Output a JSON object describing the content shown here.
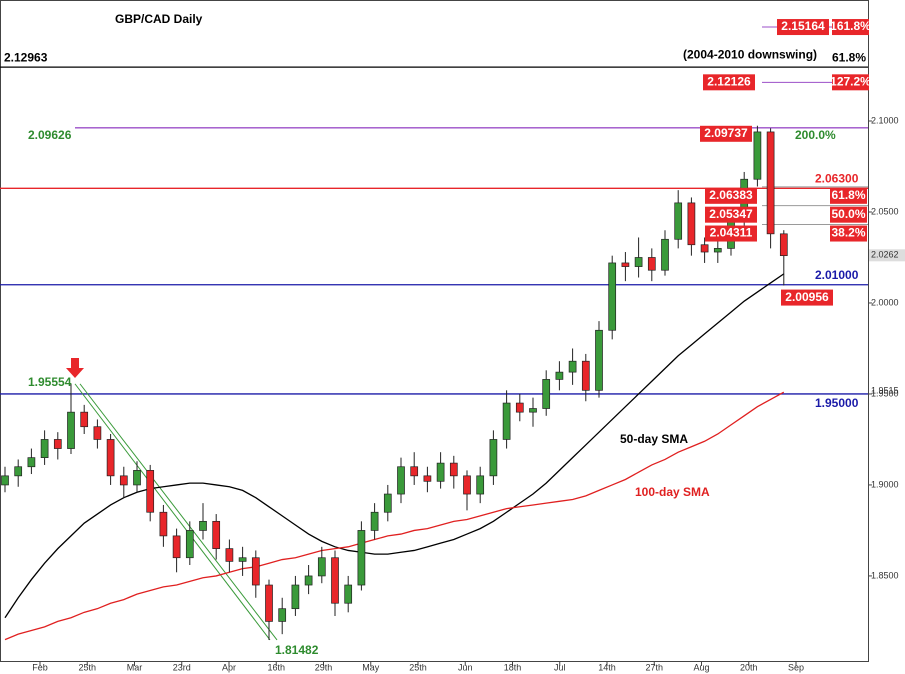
{
  "chart_data": {
    "type": "candlestick",
    "title": "GBP/CAD Daily",
    "ylim": [
      1.8027,
      2.1665
    ],
    "yticks": [
      {
        "value": 2.1,
        "label": "2.1000"
      },
      {
        "value": 2.05,
        "label": "2.0500"
      },
      {
        "value": 2.0,
        "label": "2.0000"
      },
      {
        "value": 1.95,
        "label": "1.9500"
      },
      {
        "value": 1.9,
        "label": "1.9000"
      },
      {
        "value": 1.85,
        "label": "1.8500"
      }
    ],
    "x_labels": [
      "Feb",
      "25th",
      "Mar",
      "23rd",
      "Apr",
      "16th",
      "29th",
      "May",
      "25th",
      "Jun",
      "18th",
      "Jul",
      "14th",
      "27th",
      "Aug",
      "20th",
      "Sep"
    ],
    "up_color": "#3a9a3a",
    "down_color": "#e8262a",
    "candles": {
      "open": [
        1.9,
        1.905,
        1.91,
        1.915,
        1.925,
        1.92,
        1.94,
        1.932,
        1.925,
        1.905,
        1.9,
        1.908,
        1.885,
        1.872,
        1.86,
        1.875,
        1.88,
        1.865,
        1.858,
        1.86,
        1.845,
        1.825,
        1.832,
        1.845,
        1.85,
        1.86,
        1.835,
        1.845,
        1.875,
        1.885,
        1.895,
        1.91,
        1.905,
        1.902,
        1.912,
        1.905,
        1.895,
        1.905,
        1.925,
        1.945,
        1.94,
        1.942,
        1.958,
        1.962,
        1.968,
        1.952,
        1.985,
        2.022,
        2.02,
        2.025,
        2.018,
        2.035,
        2.055,
        2.032,
        2.028,
        2.03,
        2.045,
        2.068,
        2.094,
        2.038
      ],
      "high": [
        1.91,
        1.914,
        1.92,
        1.93,
        1.929,
        1.9555,
        1.944,
        1.936,
        1.928,
        1.91,
        1.913,
        1.911,
        1.889,
        1.876,
        1.88,
        1.89,
        1.884,
        1.87,
        1.866,
        1.864,
        1.848,
        1.838,
        1.85,
        1.856,
        1.866,
        1.864,
        1.85,
        1.88,
        1.89,
        1.9,
        1.915,
        1.918,
        1.91,
        1.918,
        1.916,
        1.908,
        1.91,
        1.93,
        1.952,
        1.95,
        1.948,
        1.963,
        1.968,
        1.975,
        1.972,
        1.99,
        2.026,
        2.028,
        2.036,
        2.03,
        2.04,
        2.062,
        2.058,
        2.036,
        2.036,
        2.05,
        2.072,
        2.0974,
        2.096,
        2.04
      ],
      "low": [
        1.896,
        1.899,
        1.906,
        1.911,
        1.914,
        1.917,
        1.928,
        1.92,
        1.9,
        1.893,
        1.896,
        1.88,
        1.866,
        1.852,
        1.856,
        1.87,
        1.859,
        1.852,
        1.85,
        1.838,
        1.8148,
        1.818,
        1.828,
        1.84,
        1.846,
        1.828,
        1.83,
        1.842,
        1.87,
        1.88,
        1.89,
        1.9,
        1.896,
        1.898,
        1.898,
        1.886,
        1.89,
        1.9,
        1.92,
        1.935,
        1.932,
        1.938,
        1.952,
        1.955,
        1.946,
        1.948,
        1.98,
        2.012,
        2.014,
        2.012,
        2.015,
        2.03,
        2.026,
        2.022,
        2.022,
        2.026,
        2.04,
        2.064,
        2.03,
        2.0096
      ],
      "close": [
        1.905,
        1.91,
        1.915,
        1.925,
        1.92,
        1.94,
        1.932,
        1.925,
        1.905,
        1.9,
        1.908,
        1.885,
        1.872,
        1.86,
        1.875,
        1.88,
        1.865,
        1.858,
        1.86,
        1.845,
        1.825,
        1.832,
        1.845,
        1.85,
        1.86,
        1.835,
        1.845,
        1.875,
        1.885,
        1.895,
        1.91,
        1.905,
        1.902,
        1.912,
        1.905,
        1.895,
        1.905,
        1.925,
        1.945,
        1.94,
        1.942,
        1.958,
        1.962,
        1.968,
        1.952,
        1.985,
        2.022,
        2.02,
        2.025,
        2.018,
        2.035,
        2.055,
        2.032,
        2.028,
        2.03,
        2.045,
        2.068,
        2.094,
        2.038,
        2.026
      ]
    },
    "series": [
      {
        "name": "50-day SMA",
        "color": "#000000",
        "values": [
          1.827,
          1.838,
          1.848,
          1.857,
          1.865,
          1.872,
          1.879,
          1.884,
          1.889,
          1.893,
          1.896,
          1.898,
          1.899,
          1.9,
          1.901,
          1.901,
          1.9,
          1.899,
          1.897,
          1.893,
          1.888,
          1.883,
          1.878,
          1.873,
          1.869,
          1.866,
          1.864,
          1.863,
          1.862,
          1.862,
          1.863,
          1.864,
          1.866,
          1.868,
          1.87,
          1.873,
          1.876,
          1.88,
          1.885,
          1.89,
          1.895,
          1.901,
          1.908,
          1.915,
          1.922,
          1.929,
          1.936,
          1.943,
          1.95,
          1.957,
          1.964,
          1.971,
          1.977,
          1.983,
          1.989,
          1.995,
          2.001,
          2.006,
          2.011,
          2.016
        ]
      },
      {
        "name": "100-day SMA",
        "color": "#e02020",
        "values": [
          1.815,
          1.818,
          1.82,
          1.822,
          1.825,
          1.827,
          1.83,
          1.832,
          1.835,
          1.837,
          1.84,
          1.842,
          1.844,
          1.845,
          1.847,
          1.849,
          1.85,
          1.852,
          1.854,
          1.855,
          1.857,
          1.859,
          1.86,
          1.862,
          1.864,
          1.865,
          1.866,
          1.868,
          1.87,
          1.872,
          1.873,
          1.875,
          1.876,
          1.878,
          1.88,
          1.881,
          1.883,
          1.885,
          1.887,
          1.888,
          1.889,
          1.89,
          1.891,
          1.892,
          1.894,
          1.897,
          1.9,
          1.903,
          1.907,
          1.911,
          1.914,
          1.918,
          1.921,
          1.924,
          1.928,
          1.933,
          1.938,
          1.943,
          1.947,
          1.951
        ]
      }
    ],
    "levels": [
      {
        "value": 2.15164,
        "label": "2.15164",
        "tag": "161.8%",
        "color": "#9b4fc8",
        "line": "short",
        "label_style": "box"
      },
      {
        "value": 2.12963,
        "label": "2.12963",
        "tag": "61.8%",
        "note": "(2004-2010 downswing)",
        "color": "#000000",
        "line": "full",
        "label_style": "text"
      },
      {
        "value": 2.12126,
        "label": "2.12126",
        "tag": "127.2%",
        "color": "#9b4fc8",
        "line": "short",
        "label_style": "box"
      },
      {
        "value": 2.09626,
        "label": "2.09626",
        "tag": "200.0%",
        "color": "#9b4fc8",
        "line": "full",
        "label_style": "text",
        "text_color": "#2e8b2e"
      },
      {
        "value": 2.09737,
        "label": "2.09737",
        "label_style": "box"
      },
      {
        "value": 2.063,
        "label": "2.06300",
        "color": "#e8262a",
        "line": "full",
        "label_style": "text",
        "text_color": "#e8262a"
      },
      {
        "value": 2.06383,
        "label": "2.06383",
        "tag": "61.8%",
        "color": "#9a9a9a",
        "line": "short",
        "label_style": "box"
      },
      {
        "value": 2.05347,
        "label": "2.05347",
        "tag": "50.0%",
        "color": "#9a9a9a",
        "line": "short",
        "label_style": "box"
      },
      {
        "value": 2.04311,
        "label": "2.04311",
        "tag": "38.2%",
        "color": "#9a9a9a",
        "line": "short",
        "label_style": "box"
      },
      {
        "value": 2.01,
        "label": "2.01000",
        "color": "#1a1aa8",
        "line": "full",
        "label_style": "text",
        "text_color": "#1a1aa8"
      },
      {
        "value": 2.00956,
        "label": "2.00956",
        "label_style": "box"
      },
      {
        "value": 1.95,
        "label": "1.95000",
        "color": "#1a1aa8",
        "line": "full",
        "label_style": "text",
        "text_color": "#1a1aa8"
      },
      {
        "value": 1.95554,
        "label": "1.95554",
        "label_style": "text",
        "text_color": "#2e8b2e"
      },
      {
        "value": 1.81482,
        "label": "1.81482",
        "label_style": "text",
        "text_color": "#2e8b2e"
      }
    ],
    "last_price": {
      "value": 2.0262,
      "label": "2.0262"
    },
    "sma100_last": {
      "value": 1.9515,
      "label": "1.9515"
    }
  }
}
